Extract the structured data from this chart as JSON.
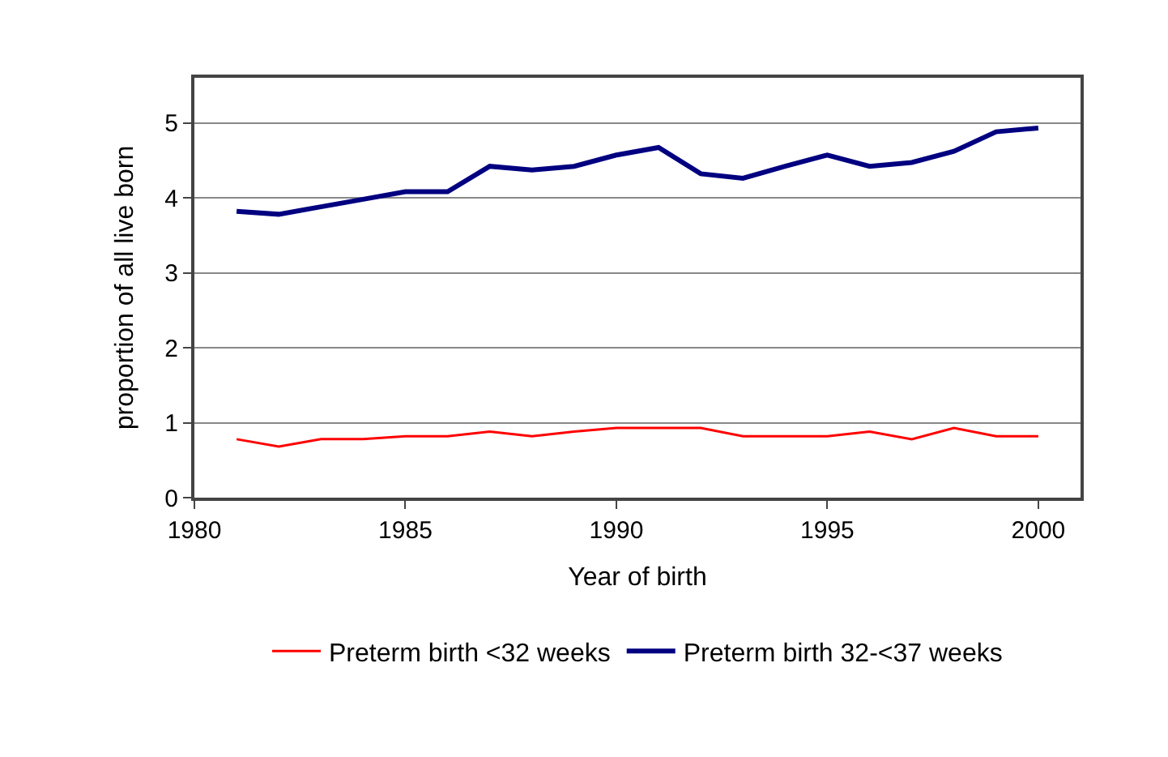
{
  "chart_data": {
    "type": "line",
    "xlabel": "Year of birth",
    "ylabel": "proportion of all live born",
    "x": [
      1981,
      1982,
      1983,
      1984,
      1985,
      1986,
      1987,
      1988,
      1989,
      1990,
      1991,
      1992,
      1993,
      1994,
      1995,
      1996,
      1997,
      1998,
      1999,
      2000
    ],
    "series": [
      {
        "name": "Preterm birth <32 weeks",
        "color": "#ff0000",
        "values": [
          0.78,
          0.68,
          0.78,
          0.78,
          0.82,
          0.82,
          0.88,
          0.82,
          0.88,
          0.93,
          0.93,
          0.93,
          0.82,
          0.82,
          0.82,
          0.88,
          0.78,
          0.93,
          0.82,
          0.82
        ]
      },
      {
        "name": "Preterm birth 32-<37 weeks",
        "color": "#000080",
        "values": [
          3.82,
          3.78,
          3.88,
          3.98,
          4.08,
          4.08,
          4.42,
          4.37,
          4.42,
          4.57,
          4.67,
          4.32,
          4.26,
          4.42,
          4.57,
          4.42,
          4.47,
          4.62,
          4.88,
          4.93
        ]
      }
    ],
    "xlim": [
      1980,
      2001
    ],
    "xticks": [
      1980,
      1985,
      1990,
      1995,
      2000
    ],
    "ylim": [
      0,
      5.6
    ],
    "yticks": [
      0,
      1,
      2,
      3,
      4,
      5
    ],
    "grid": "y",
    "legend": "bottom",
    "marker": "none",
    "line_style": "solid"
  }
}
